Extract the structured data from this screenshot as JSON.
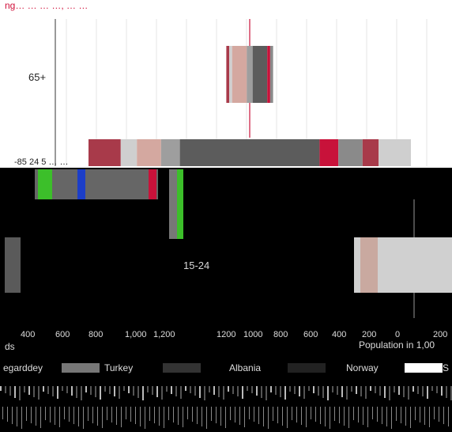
{
  "header": {
    "text": "ng… … …   …,  … …"
  },
  "chart_data": [
    {
      "type": "bar",
      "categories": [
        "65+",
        "15-24"
      ],
      "series": [
        {
          "values_by_category": {
            "65+": [
              -80,
              -70,
              -60,
              -10,
              10,
              60,
              70,
              80
            ],
            "15-24": [
              -600,
              -480,
              -420,
              -330,
              -260,
              260,
              330,
              420,
              480,
              600
            ]
          }
        }
      ],
      "tick_labels_upper": [
        "65+",
        "-85 24 5 … …"
      ],
      "colors": [
        "#c8123a",
        "#8a8a8a",
        "#a83a4a",
        "#cfcfcf",
        "#d4a8a0",
        "#9e9e9e",
        "#5c5c5c"
      ]
    },
    {
      "type": "bar",
      "panel_label": "15-24",
      "x_ticks_left": [
        "400",
        "600",
        "800",
        "1,000",
        "1,200"
      ],
      "x_ticks_right": [
        "1200",
        "1000",
        "800",
        "600",
        "400",
        "200",
        "0",
        "200"
      ],
      "x_label_right": "Population in 1,00",
      "x_label_left": "ds",
      "legend": [
        "egarddey",
        "Turkey",
        "Albania",
        "Norway",
        "S"
      ],
      "legend_colors": [
        "#777777",
        "#333333",
        "#222222",
        "#ffffff",
        "#999999"
      ],
      "bar_fracs": [
        0.02,
        0.98
      ],
      "bar_colors": [
        "#5a5a5a",
        "#c9a9a0",
        "#f0e8e8",
        "#d0d0d0"
      ]
    }
  ]
}
